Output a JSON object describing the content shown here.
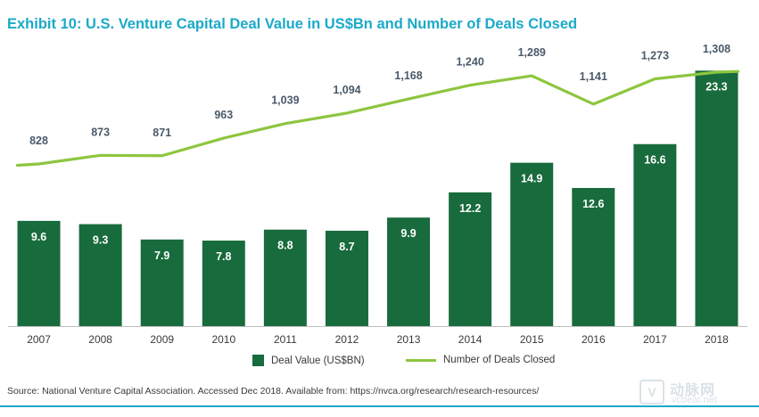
{
  "title": "Exhibit 10: U.S. Venture Capital Deal Value in US$Bn and Number of Deals Closed",
  "source": "Source: National Venture Capital Association. Accessed Dec 2018. Available from: https://nvca.org/research/research-resources/",
  "watermark": {
    "box_glyph": "V",
    "cn": "动脉网",
    "en": "vcbeat.net"
  },
  "colors": {
    "title": "#1ba9c9",
    "bar": "#186b3c",
    "line": "#8dc63f",
    "line_label": "#4a5a6a",
    "bar_label": "#ffffff",
    "rule": "#1ba9c9"
  },
  "chart_data": {
    "type": "bar",
    "categories": [
      "2007",
      "2008",
      "2009",
      "2010",
      "2011",
      "2012",
      "2013",
      "2014",
      "2015",
      "2016",
      "2017",
      "2018"
    ],
    "series": [
      {
        "name": "Deal Value (US$BN)",
        "type": "bar",
        "values": [
          9.6,
          9.3,
          7.9,
          7.8,
          8.8,
          8.7,
          9.9,
          12.2,
          14.9,
          12.6,
          16.6,
          23.3
        ]
      },
      {
        "name": "Number of Deals Closed",
        "type": "line",
        "values": [
          828,
          873,
          871,
          963,
          1039,
          1094,
          1168,
          1240,
          1289,
          1141,
          1273,
          1308
        ]
      }
    ],
    "bar_labels": [
      "9.6",
      "9.3",
      "7.9",
      "7.8",
      "8.8",
      "8.7",
      "9.9",
      "12.2",
      "14.9",
      "12.6",
      "16.6",
      "23.3"
    ],
    "line_labels": [
      "828",
      "873",
      "871",
      "963",
      "1,039",
      "1,094",
      "1,168",
      "1,240",
      "1,289",
      "1,141",
      "1,273",
      "1,308"
    ],
    "bar_ylim": [
      0,
      25
    ],
    "line_ylim": [
      600,
      1350
    ],
    "grid": false,
    "legend": "bottom-center"
  }
}
